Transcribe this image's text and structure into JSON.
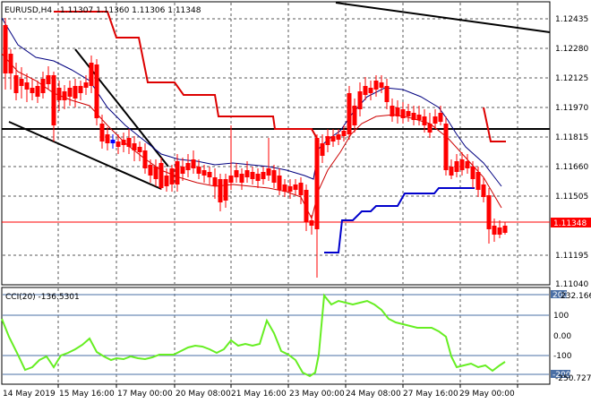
{
  "header": {
    "symbol_timeframe": "EURUSD,H4",
    "ohlc": "1.11307 1.11360 1.11306 1.11348"
  },
  "colors": {
    "background": "#ffffff",
    "grid": "#5a5a5a",
    "bull_candle": "#0000ff",
    "bear_candle": "#ff0000",
    "upper_band": "#000080",
    "lower_band": "#0000cc",
    "ma_red": "#cc0000",
    "stepline_red": "#dd0000",
    "horizontal_level": "#000000",
    "current_price_line": "#ff0000",
    "cci_line": "#66ee22",
    "cci_levels": "#4a6fa5",
    "price_tag_bg": "#ff0000"
  },
  "chart_data": [
    {
      "type": "candlestick",
      "title": "EURUSD,H4",
      "price_axis": {
        "ticks": [
          "1.12435",
          "1.12280",
          "1.12125",
          "1.11970",
          "1.11815",
          "1.11660",
          "1.11505",
          "1.11195",
          "1.11040"
        ],
        "current_price": "1.11348",
        "range": [
          1.1104,
          1.1249
        ]
      },
      "time_axis": {
        "ticks": [
          "14 May 2019",
          "15 May 16:00",
          "17 May 00:00",
          "20 May 08:00",
          "21 May 16:00",
          "23 May 00:00",
          "24 May 08:00",
          "27 May 16:00",
          "29 May 00:00"
        ]
      },
      "horizontal_level": 1.11815,
      "grid": true
    },
    {
      "type": "line",
      "title": "CCI(20) -136.5301",
      "y_ticks": [
        "232.1666",
        "100",
        "0.00",
        "-100",
        "-250.727"
      ],
      "levels": [
        200,
        100,
        -100,
        -200
      ],
      "range": [
        -250.727,
        232.1666
      ],
      "level_tags": [
        "200",
        "-200"
      ]
    }
  ]
}
